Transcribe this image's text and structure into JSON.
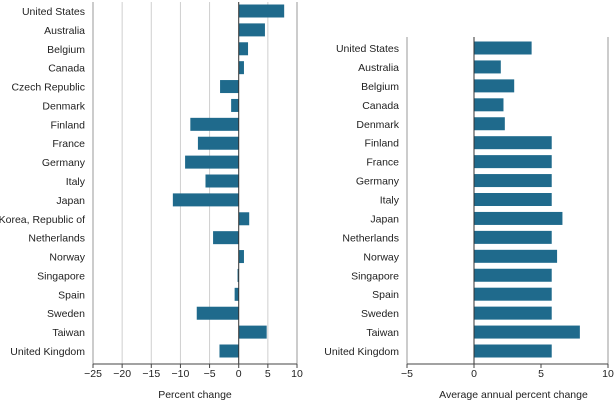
{
  "chart_data": [
    {
      "type": "bar",
      "orientation": "horizontal",
      "xlabel": "Percent change",
      "ylabel": "",
      "xlim": [
        -25,
        10
      ],
      "xticks": [
        -25,
        -20,
        -15,
        -10,
        -5,
        0,
        5,
        10
      ],
      "grid": true,
      "color": "#1f6a8c",
      "categories": [
        "United States",
        "Australia",
        "Belgium",
        "Canada",
        "Czech Republic",
        "Denmark",
        "Finland",
        "France",
        "Germany",
        "Italy",
        "Japan",
        "Korea, Republic of",
        "Netherlands",
        "Norway",
        "Singapore",
        "Spain",
        "Sweden",
        "Taiwan",
        "United Kingdom"
      ],
      "values": [
        7.8,
        4.5,
        1.6,
        0.9,
        -3.2,
        -1.3,
        -8.3,
        -7.0,
        -9.2,
        -5.7,
        -11.3,
        1.8,
        -4.4,
        0.9,
        -0.2,
        -0.7,
        -7.2,
        4.8,
        -3.3
      ]
    },
    {
      "type": "bar",
      "orientation": "horizontal",
      "xlabel": "Average annual percent change",
      "ylabel": "",
      "xlim": [
        -5,
        10
      ],
      "xticks": [
        -5,
        0,
        5,
        10
      ],
      "grid": false,
      "color": "#1f6a8c",
      "categories": [
        "United States",
        "Australia",
        "Belgium",
        "Canada",
        "Denmark",
        "Finland",
        "France",
        "Germany",
        "Italy",
        "Japan",
        "Netherlands",
        "Norway",
        "Singapore",
        "Spain",
        "Sweden",
        "Taiwan",
        "United Kingdom"
      ],
      "values": [
        4.3,
        2.0,
        3.0,
        2.2,
        2.3,
        5.8,
        5.8,
        5.8,
        5.8,
        6.6,
        5.8,
        6.2,
        5.8,
        5.8,
        5.8,
        7.9,
        5.8
      ]
    }
  ]
}
